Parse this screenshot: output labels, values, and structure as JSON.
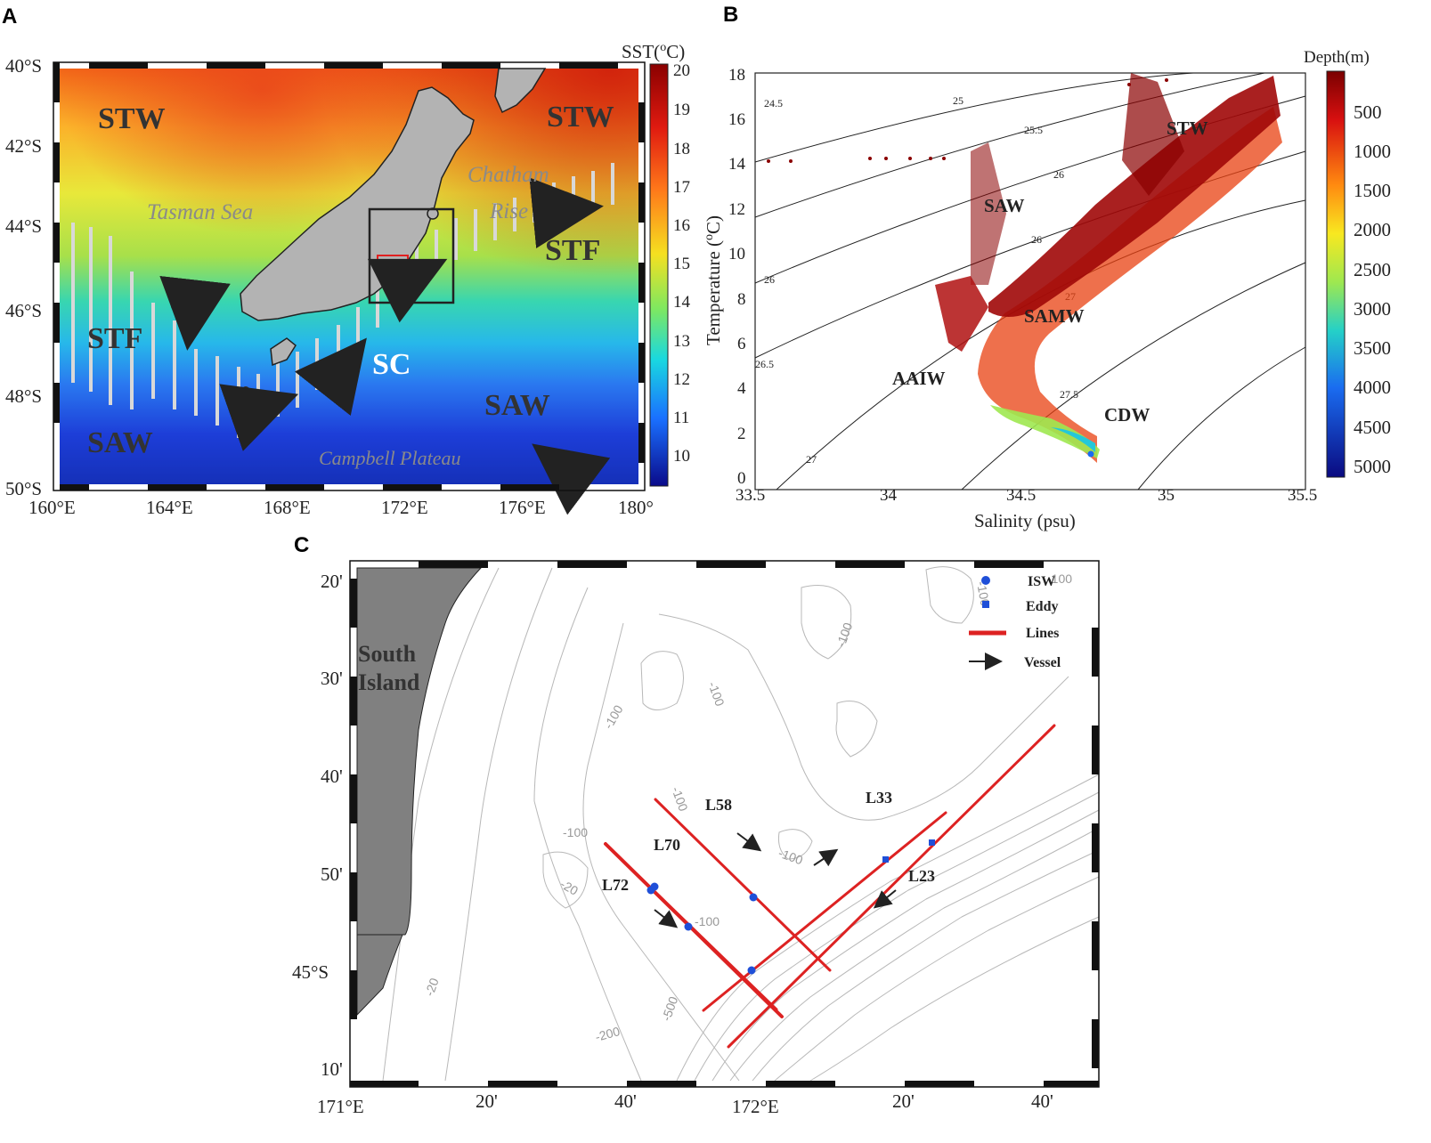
{
  "panels": {
    "a": {
      "letter": "A",
      "colorbar_title": "SST(",
      "colorbar_title_sup": "o",
      "colorbar_title_end": "C)",
      "colorbar_ticks": [
        "20",
        "19",
        "18",
        "17",
        "16",
        "15",
        "14",
        "13",
        "12",
        "11",
        "10"
      ],
      "lat_ticks": [
        "40°S",
        "42°S",
        "44°S",
        "46°S",
        "48°S",
        "50°S"
      ],
      "lon_ticks": [
        "160°E",
        "164°E",
        "168°E",
        "172°E",
        "176°E",
        "180°"
      ],
      "water_masses": [
        {
          "text": "STW"
        },
        {
          "text": "STW"
        },
        {
          "text": "STF"
        },
        {
          "text": "STF"
        },
        {
          "text": "SC"
        },
        {
          "text": "SAW"
        },
        {
          "text": "SAW"
        }
      ],
      "place_names": [
        "Tasman Sea",
        "Chatham",
        "Rise",
        "Campbell Plateau"
      ],
      "colors": {
        "land": "#b3b3b3",
        "warm": "#d42a12",
        "cold": "#0a2bb8"
      }
    },
    "b": {
      "letter": "B",
      "ylabel": "Temperature (",
      "ylabel_sup": "o",
      "ylabel_end": "C)",
      "xlabel": "Salinity (psu)",
      "colorbar_title": "Depth(m)",
      "colorbar_ticks": [
        "500",
        "1000",
        "1500",
        "2000",
        "2500",
        "3000",
        "3500",
        "4000",
        "4500",
        "5000"
      ],
      "x_ticks": [
        "33.5",
        "34",
        "34.5",
        "35",
        "35.5"
      ],
      "y_ticks": [
        "0",
        "2",
        "4",
        "6",
        "8",
        "10",
        "12",
        "14",
        "16",
        "18"
      ],
      "density_labels": [
        "24.5",
        "25",
        "25.5",
        "26",
        "26",
        "26",
        "26.5",
        "27",
        "27",
        "27.5"
      ],
      "water_masses": [
        "STW",
        "SAW",
        "SAMW",
        "AAIW",
        "CDW"
      ]
    },
    "c": {
      "letter": "C",
      "lat_ticks": [
        "20'",
        "30'",
        "40'",
        "50'",
        "45°S",
        "10'"
      ],
      "lon_ticks": [
        "171°E",
        "20'",
        "40'",
        "172°E",
        "20'",
        "40'"
      ],
      "land_label_1": "South",
      "land_label_2": "Island",
      "legend": [
        {
          "label": "ISW",
          "symbol": "circle"
        },
        {
          "label": "Eddy",
          "symbol": "square"
        },
        {
          "label": "Lines",
          "symbol": "line"
        },
        {
          "label": "Vessel",
          "symbol": "arrow"
        }
      ],
      "line_labels": [
        "L58",
        "L70",
        "L72",
        "L33",
        "L23"
      ],
      "contour_labels": [
        "-100",
        "-100",
        "-100",
        "-100",
        "-100",
        "-100",
        "-100",
        "-100",
        "-20",
        "-20",
        "-200",
        "-500",
        "-100"
      ],
      "colors": {
        "lines": "#dd2222",
        "points": "#1f4fd8",
        "land": "#808080"
      }
    }
  }
}
